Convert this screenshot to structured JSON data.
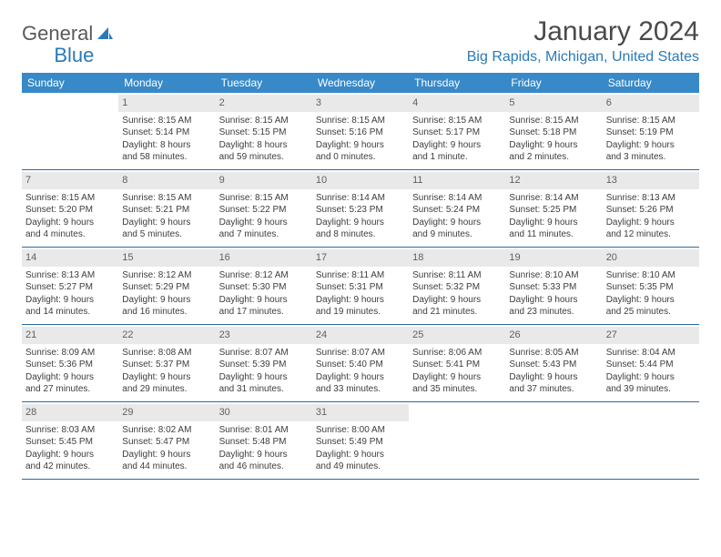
{
  "logo": {
    "word1": "General",
    "word2": "Blue"
  },
  "title": "January 2024",
  "location": "Big Rapids, Michigan, United States",
  "colors": {
    "header_bg": "#3889c7",
    "header_text": "#ffffff",
    "accent": "#2a7ab8",
    "row_border": "#2a6aa0",
    "daynum_bg": "#e9e9e9",
    "text": "#3d3d3d"
  },
  "dow": [
    "Sunday",
    "Monday",
    "Tuesday",
    "Wednesday",
    "Thursday",
    "Friday",
    "Saturday"
  ],
  "weeks": [
    [
      {
        "num": "",
        "sunrise": "",
        "sunset": "",
        "day1": "",
        "day2": ""
      },
      {
        "num": "1",
        "sunrise": "Sunrise: 8:15 AM",
        "sunset": "Sunset: 5:14 PM",
        "day1": "Daylight: 8 hours",
        "day2": "and 58 minutes."
      },
      {
        "num": "2",
        "sunrise": "Sunrise: 8:15 AM",
        "sunset": "Sunset: 5:15 PM",
        "day1": "Daylight: 8 hours",
        "day2": "and 59 minutes."
      },
      {
        "num": "3",
        "sunrise": "Sunrise: 8:15 AM",
        "sunset": "Sunset: 5:16 PM",
        "day1": "Daylight: 9 hours",
        "day2": "and 0 minutes."
      },
      {
        "num": "4",
        "sunrise": "Sunrise: 8:15 AM",
        "sunset": "Sunset: 5:17 PM",
        "day1": "Daylight: 9 hours",
        "day2": "and 1 minute."
      },
      {
        "num": "5",
        "sunrise": "Sunrise: 8:15 AM",
        "sunset": "Sunset: 5:18 PM",
        "day1": "Daylight: 9 hours",
        "day2": "and 2 minutes."
      },
      {
        "num": "6",
        "sunrise": "Sunrise: 8:15 AM",
        "sunset": "Sunset: 5:19 PM",
        "day1": "Daylight: 9 hours",
        "day2": "and 3 minutes."
      }
    ],
    [
      {
        "num": "7",
        "sunrise": "Sunrise: 8:15 AM",
        "sunset": "Sunset: 5:20 PM",
        "day1": "Daylight: 9 hours",
        "day2": "and 4 minutes."
      },
      {
        "num": "8",
        "sunrise": "Sunrise: 8:15 AM",
        "sunset": "Sunset: 5:21 PM",
        "day1": "Daylight: 9 hours",
        "day2": "and 5 minutes."
      },
      {
        "num": "9",
        "sunrise": "Sunrise: 8:15 AM",
        "sunset": "Sunset: 5:22 PM",
        "day1": "Daylight: 9 hours",
        "day2": "and 7 minutes."
      },
      {
        "num": "10",
        "sunrise": "Sunrise: 8:14 AM",
        "sunset": "Sunset: 5:23 PM",
        "day1": "Daylight: 9 hours",
        "day2": "and 8 minutes."
      },
      {
        "num": "11",
        "sunrise": "Sunrise: 8:14 AM",
        "sunset": "Sunset: 5:24 PM",
        "day1": "Daylight: 9 hours",
        "day2": "and 9 minutes."
      },
      {
        "num": "12",
        "sunrise": "Sunrise: 8:14 AM",
        "sunset": "Sunset: 5:25 PM",
        "day1": "Daylight: 9 hours",
        "day2": "and 11 minutes."
      },
      {
        "num": "13",
        "sunrise": "Sunrise: 8:13 AM",
        "sunset": "Sunset: 5:26 PM",
        "day1": "Daylight: 9 hours",
        "day2": "and 12 minutes."
      }
    ],
    [
      {
        "num": "14",
        "sunrise": "Sunrise: 8:13 AM",
        "sunset": "Sunset: 5:27 PM",
        "day1": "Daylight: 9 hours",
        "day2": "and 14 minutes."
      },
      {
        "num": "15",
        "sunrise": "Sunrise: 8:12 AM",
        "sunset": "Sunset: 5:29 PM",
        "day1": "Daylight: 9 hours",
        "day2": "and 16 minutes."
      },
      {
        "num": "16",
        "sunrise": "Sunrise: 8:12 AM",
        "sunset": "Sunset: 5:30 PM",
        "day1": "Daylight: 9 hours",
        "day2": "and 17 minutes."
      },
      {
        "num": "17",
        "sunrise": "Sunrise: 8:11 AM",
        "sunset": "Sunset: 5:31 PM",
        "day1": "Daylight: 9 hours",
        "day2": "and 19 minutes."
      },
      {
        "num": "18",
        "sunrise": "Sunrise: 8:11 AM",
        "sunset": "Sunset: 5:32 PM",
        "day1": "Daylight: 9 hours",
        "day2": "and 21 minutes."
      },
      {
        "num": "19",
        "sunrise": "Sunrise: 8:10 AM",
        "sunset": "Sunset: 5:33 PM",
        "day1": "Daylight: 9 hours",
        "day2": "and 23 minutes."
      },
      {
        "num": "20",
        "sunrise": "Sunrise: 8:10 AM",
        "sunset": "Sunset: 5:35 PM",
        "day1": "Daylight: 9 hours",
        "day2": "and 25 minutes."
      }
    ],
    [
      {
        "num": "21",
        "sunrise": "Sunrise: 8:09 AM",
        "sunset": "Sunset: 5:36 PM",
        "day1": "Daylight: 9 hours",
        "day2": "and 27 minutes."
      },
      {
        "num": "22",
        "sunrise": "Sunrise: 8:08 AM",
        "sunset": "Sunset: 5:37 PM",
        "day1": "Daylight: 9 hours",
        "day2": "and 29 minutes."
      },
      {
        "num": "23",
        "sunrise": "Sunrise: 8:07 AM",
        "sunset": "Sunset: 5:39 PM",
        "day1": "Daylight: 9 hours",
        "day2": "and 31 minutes."
      },
      {
        "num": "24",
        "sunrise": "Sunrise: 8:07 AM",
        "sunset": "Sunset: 5:40 PM",
        "day1": "Daylight: 9 hours",
        "day2": "and 33 minutes."
      },
      {
        "num": "25",
        "sunrise": "Sunrise: 8:06 AM",
        "sunset": "Sunset: 5:41 PM",
        "day1": "Daylight: 9 hours",
        "day2": "and 35 minutes."
      },
      {
        "num": "26",
        "sunrise": "Sunrise: 8:05 AM",
        "sunset": "Sunset: 5:43 PM",
        "day1": "Daylight: 9 hours",
        "day2": "and 37 minutes."
      },
      {
        "num": "27",
        "sunrise": "Sunrise: 8:04 AM",
        "sunset": "Sunset: 5:44 PM",
        "day1": "Daylight: 9 hours",
        "day2": "and 39 minutes."
      }
    ],
    [
      {
        "num": "28",
        "sunrise": "Sunrise: 8:03 AM",
        "sunset": "Sunset: 5:45 PM",
        "day1": "Daylight: 9 hours",
        "day2": "and 42 minutes."
      },
      {
        "num": "29",
        "sunrise": "Sunrise: 8:02 AM",
        "sunset": "Sunset: 5:47 PM",
        "day1": "Daylight: 9 hours",
        "day2": "and 44 minutes."
      },
      {
        "num": "30",
        "sunrise": "Sunrise: 8:01 AM",
        "sunset": "Sunset: 5:48 PM",
        "day1": "Daylight: 9 hours",
        "day2": "and 46 minutes."
      },
      {
        "num": "31",
        "sunrise": "Sunrise: 8:00 AM",
        "sunset": "Sunset: 5:49 PM",
        "day1": "Daylight: 9 hours",
        "day2": "and 49 minutes."
      },
      {
        "num": "",
        "sunrise": "",
        "sunset": "",
        "day1": "",
        "day2": ""
      },
      {
        "num": "",
        "sunrise": "",
        "sunset": "",
        "day1": "",
        "day2": ""
      },
      {
        "num": "",
        "sunrise": "",
        "sunset": "",
        "day1": "",
        "day2": ""
      }
    ]
  ]
}
